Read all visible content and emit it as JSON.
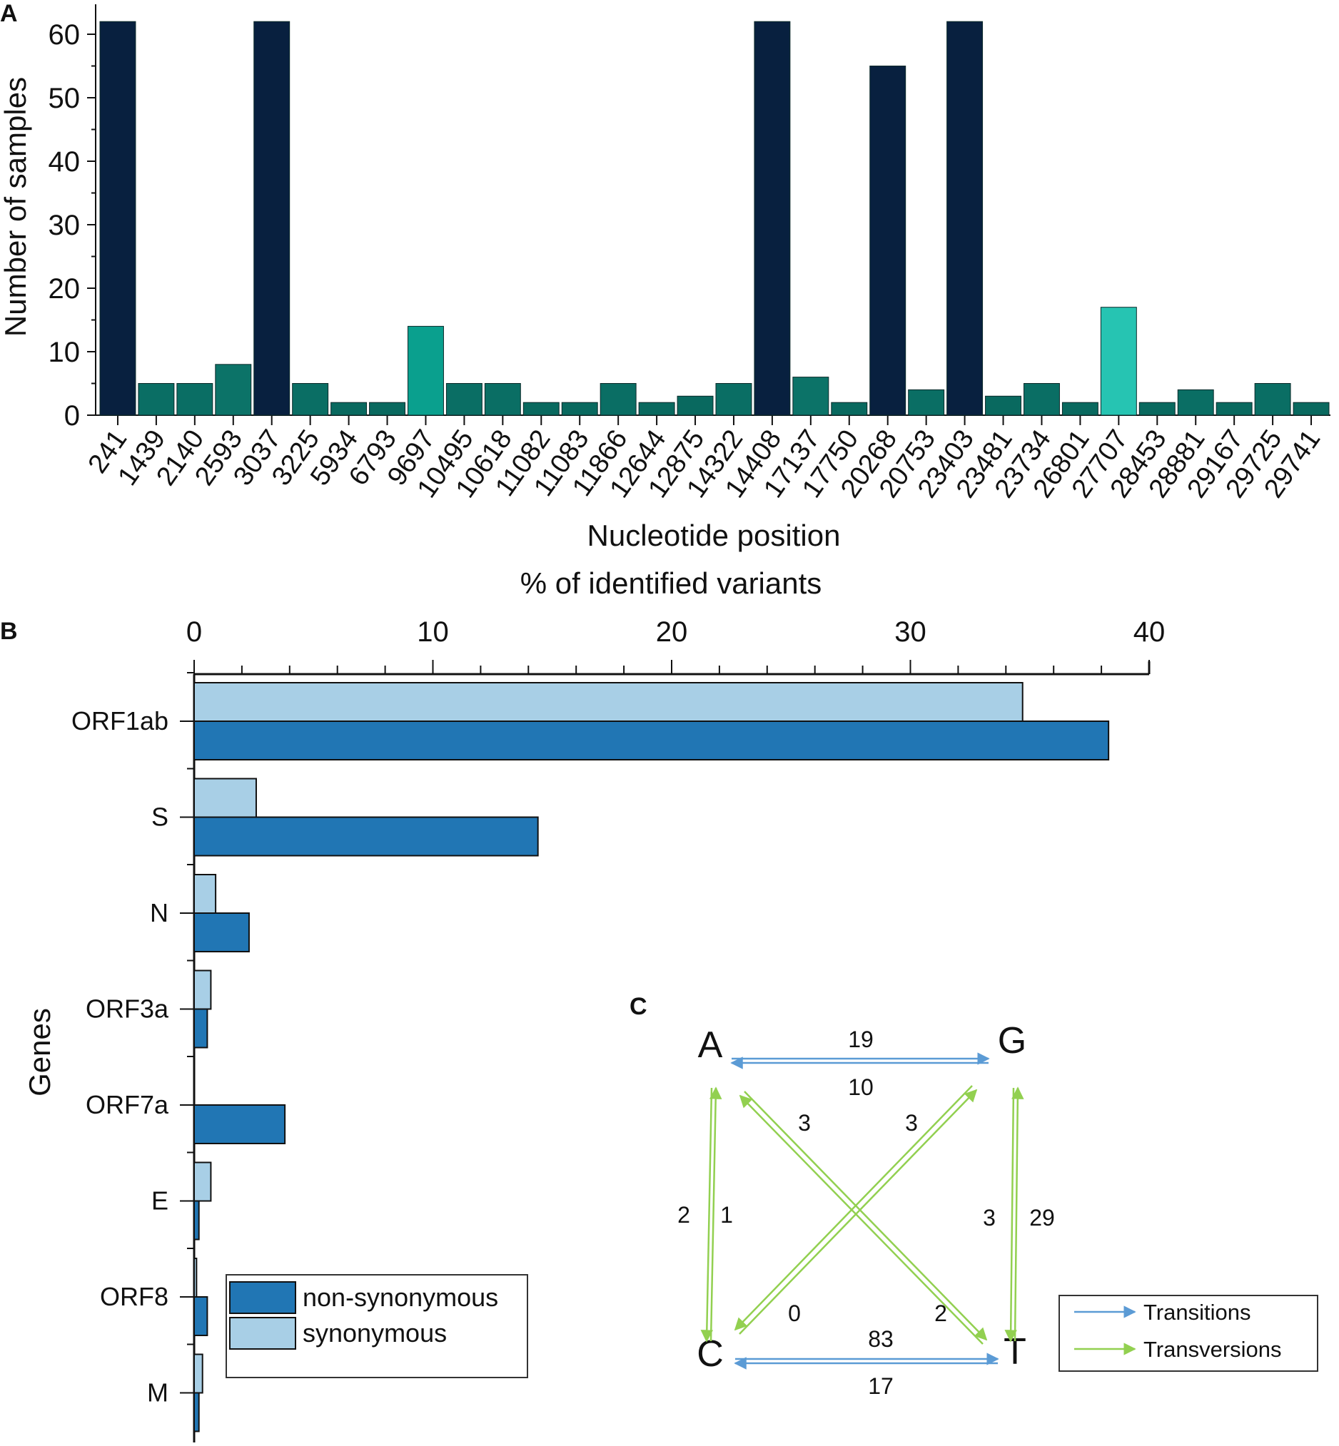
{
  "chart_data": [
    {
      "panel": "A",
      "type": "bar",
      "xlabel": "Nucleotide position",
      "ylabel": "Number of samples",
      "ylim": [
        0,
        65
      ],
      "yticks": [
        0,
        10,
        20,
        30,
        40,
        50,
        60
      ],
      "categories": [
        "241",
        "1439",
        "2140",
        "2593",
        "3037",
        "3225",
        "5934",
        "6793",
        "9697",
        "10495",
        "10618",
        "11082",
        "11083",
        "11866",
        "12644",
        "12875",
        "14322",
        "14408",
        "17137",
        "17750",
        "20268",
        "20753",
        "23403",
        "23481",
        "23734",
        "26801",
        "27707",
        "28453",
        "28881",
        "29167",
        "29725",
        "29741"
      ],
      "values": [
        62,
        5,
        5,
        8,
        62,
        5,
        2,
        2,
        14,
        5,
        5,
        2,
        2,
        5,
        2,
        3,
        5,
        62,
        6,
        2,
        55,
        4,
        62,
        3,
        5,
        2,
        17,
        2,
        4,
        2,
        5,
        2
      ],
      "colors": [
        "#08203f",
        "#0a6e64",
        "#0a6e64",
        "#0c7368",
        "#08203f",
        "#0a6e64",
        "#09695f",
        "#09695f",
        "#0aa08e",
        "#0a6e64",
        "#0a6e64",
        "#09695f",
        "#09695f",
        "#0a6e64",
        "#09695f",
        "#09695f",
        "#0a6e64",
        "#08203f",
        "#0c7368",
        "#09695f",
        "#08203f",
        "#0a6e64",
        "#08203f",
        "#09695f",
        "#0a6e64",
        "#09695f",
        "#26c4b2",
        "#09695f",
        "#0a6e64",
        "#09695f",
        "#0a6e64",
        "#09695f"
      ]
    },
    {
      "panel": "B",
      "type": "bar",
      "orientation": "horizontal",
      "xlabel": "% of identified variants",
      "ylabel": "Genes",
      "xlim": [
        0,
        40
      ],
      "xticks": [
        0,
        10,
        20,
        30,
        40
      ],
      "categories": [
        "ORF1ab",
        "S",
        "N",
        "ORF3a",
        "ORF7a",
        "E",
        "ORF8",
        "M"
      ],
      "series": [
        {
          "name": "synonymous",
          "color": "#a8cfe6",
          "values": [
            34.7,
            2.6,
            0.9,
            0.7,
            0.0,
            0.7,
            0.1,
            0.35
          ]
        },
        {
          "name": "non-synonymous",
          "color": "#2176b4",
          "values": [
            38.3,
            14.4,
            2.3,
            0.55,
            3.8,
            0.2,
            0.55,
            0.2
          ]
        }
      ],
      "legend": [
        "non-synonymous",
        "synonymous"
      ],
      "legend_placement": "bottom-left"
    },
    {
      "panel": "C",
      "type": "diagram",
      "nodes": [
        "A",
        "G",
        "C",
        "T"
      ],
      "edges": [
        {
          "a": "A",
          "b": "G",
          "kind": "transition",
          "forward": "19",
          "backward": "10"
        },
        {
          "a": "C",
          "b": "T",
          "kind": "transition",
          "forward": "83",
          "backward": "17"
        },
        {
          "a": "A",
          "b": "C",
          "kind": "transversion",
          "forward": "1",
          "backward": "2"
        },
        {
          "a": "G",
          "b": "T",
          "kind": "transversion",
          "forward": "29",
          "backward": "3"
        },
        {
          "a": "A",
          "b": "T",
          "kind": "transversion",
          "forward": "2",
          "backward": "3"
        },
        {
          "a": "G",
          "b": "C",
          "kind": "transversion",
          "forward": "0",
          "backward": "3"
        }
      ],
      "legend": [
        {
          "label": "Transitions",
          "color": "#5b9bd5"
        },
        {
          "label": "Transversions",
          "color": "#92d050"
        }
      ]
    }
  ]
}
